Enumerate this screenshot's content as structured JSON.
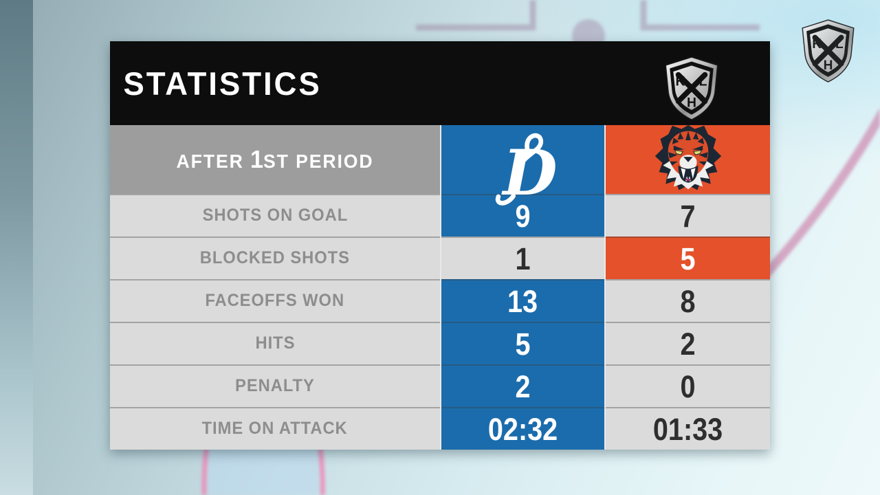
{
  "league_logo": {
    "name": "khl-shield-logo",
    "letters": {
      "k": "K",
      "l": "L",
      "h": "H"
    }
  },
  "scoreboard": {
    "title": "STATISTICS",
    "period_label": "AFTER 1ST PERIOD",
    "home_team": {
      "logo_icon": "dynamo-moscow-script-d-logo",
      "color": "#1b6cac"
    },
    "away_team": {
      "logo_icon": "amur-khabarovsk-tiger-logo",
      "color": "#e4512b"
    },
    "rows": [
      {
        "label": "SHOTS ON GOAL",
        "home_value": "9",
        "away_value": "7",
        "home_highlight": true,
        "away_highlight": false
      },
      {
        "label": "BLOCKED SHOTS",
        "home_value": "1",
        "away_value": "5",
        "home_highlight": false,
        "away_highlight": true
      },
      {
        "label": "FACEOFFS WON",
        "home_value": "13",
        "away_value": "8",
        "home_highlight": true,
        "away_highlight": false
      },
      {
        "label": "HITS",
        "home_value": "5",
        "away_value": "2",
        "home_highlight": true,
        "away_highlight": false
      },
      {
        "label": "PENALTY",
        "home_value": "2",
        "away_value": "0",
        "home_highlight": true,
        "away_highlight": false
      },
      {
        "label": "TIME ON ATTACK",
        "home_value": "02:32",
        "away_value": "01:33",
        "home_highlight": true,
        "away_highlight": false
      }
    ]
  },
  "colors": {
    "title_bg": "#0d0d0d",
    "header_gray": "#9d9d9d",
    "row_gray": "#dbdbdb",
    "home_blue": "#1b6cac",
    "away_orange": "#e4512b",
    "label_text": "#8d8d8d",
    "value_dark": "#2e2e2e",
    "rink_line_pink": "#ee8ab8",
    "rink_line_mauve": "#9f87a6"
  }
}
